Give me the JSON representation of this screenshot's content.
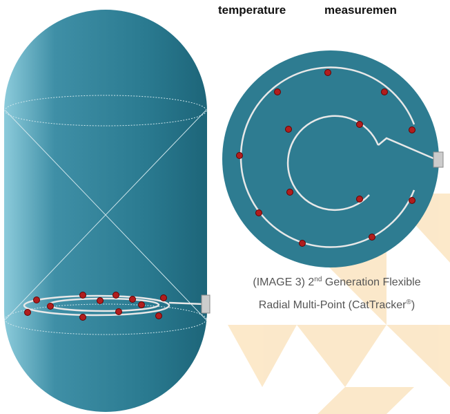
{
  "heading": {
    "words": [
      "temperature",
      "measuremen"
    ]
  },
  "caption": {
    "line1": {
      "prefix": "(IMAGE 3)  2",
      "sup": "nd",
      "rest": " Generation Flexible"
    },
    "line2": {
      "text": "Radial Multi-Point (CatTracker",
      "sup": "®",
      "end": ")"
    }
  }
}
